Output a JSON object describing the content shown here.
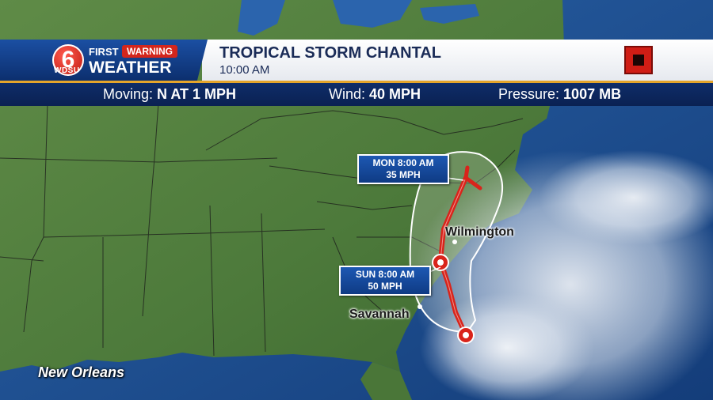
{
  "header": {
    "station_logo": "6 WDSU",
    "brand_first": "FIRST",
    "brand_warning": "WARNING",
    "brand_weather": "WEATHER",
    "storm_name": "TROPICAL STORM CHANTAL",
    "time": "10:00 AM",
    "stop_icon": "red-square-icon"
  },
  "stats": {
    "moving_label": "Moving:",
    "moving_value": "N AT 1 MPH",
    "wind_label": "Wind:",
    "wind_value": "40 MPH",
    "pressure_label": "Pressure:",
    "pressure_value": "1007 MB"
  },
  "map": {
    "cities": {
      "wilmington": "Wilmington",
      "savannah": "Savannah",
      "new_orleans": "New Orleans"
    },
    "forecast_points": [
      {
        "time": "MON 8:00 AM",
        "wind": "35 MPH"
      },
      {
        "time": "SUN 8:00 AM",
        "wind": "50 MPH"
      }
    ],
    "colors": {
      "track": "#d9241b",
      "cone": "#ffffff",
      "land": "#4f7a3c",
      "ocean": "#1e4e8c",
      "brand_blue": "#1b4fa3",
      "accent_orange": "#e5a52b"
    }
  }
}
